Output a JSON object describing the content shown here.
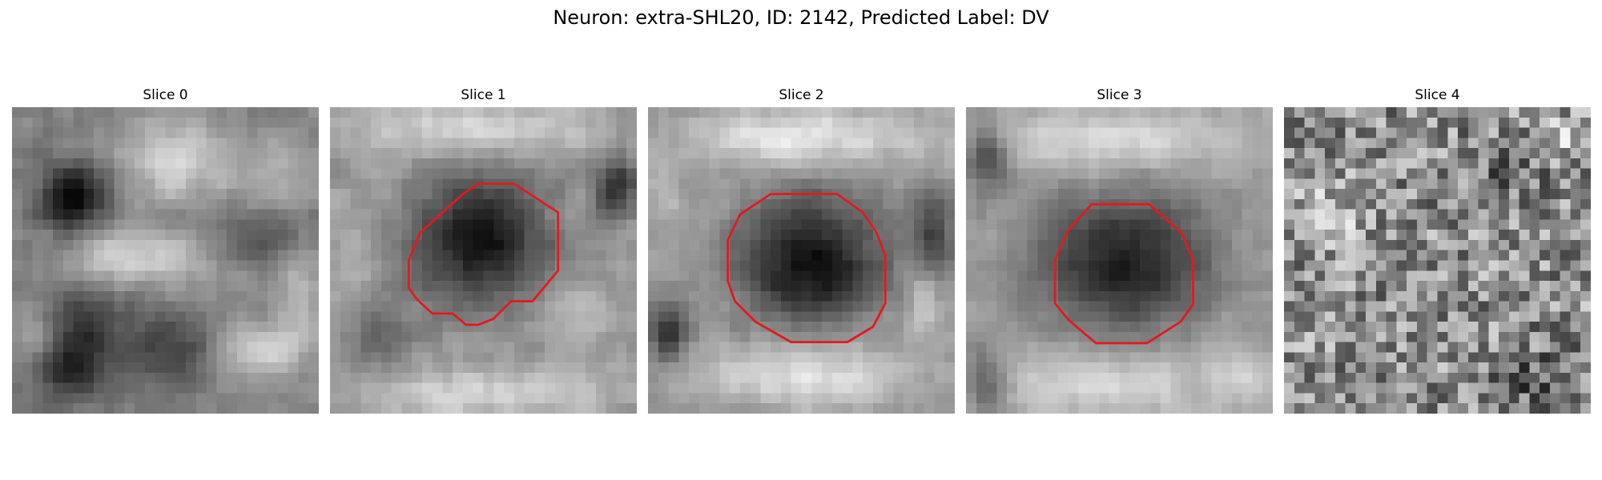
{
  "figure": {
    "title": "Neuron: extra-SHL20, ID: 2142, Predicted Label: DV"
  },
  "contour_color": "#e31a1c",
  "panels": [
    {
      "title": "Slice 0",
      "has_contour": false
    },
    {
      "title": "Slice 1",
      "has_contour": true
    },
    {
      "title": "Slice 2",
      "has_contour": true
    },
    {
      "title": "Slice 3",
      "has_contour": true
    },
    {
      "title": "Slice 4",
      "has_contour": false
    }
  ]
}
